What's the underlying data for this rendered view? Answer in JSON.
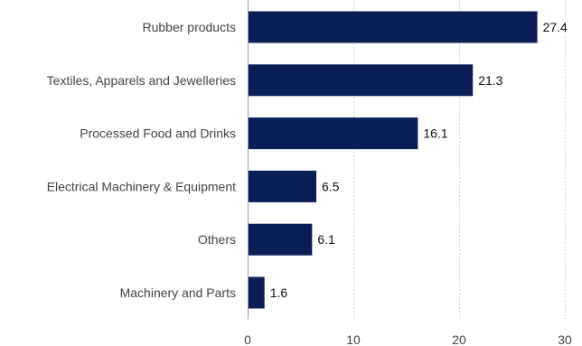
{
  "chart_data": {
    "type": "bar",
    "orientation": "horizontal",
    "categories": [
      "Rubber products",
      "Textiles, Apparels and Jewelleries",
      "Processed Food and Drinks",
      "Electrical Machinery & Equipment",
      "Others",
      "Machinery and Parts"
    ],
    "values": [
      27.4,
      21.3,
      16.1,
      6.5,
      6.1,
      1.6
    ],
    "data_labels": [
      "27.4",
      "21.3",
      "16.1",
      "6.5",
      "6.1",
      "1.6"
    ],
    "xlim": [
      0,
      30
    ],
    "x_ticks": [
      "0",
      "10",
      "20",
      "30"
    ],
    "x_tick_values": [
      0,
      10,
      20,
      30
    ],
    "grid": true,
    "legend": "none",
    "bar_color": "#0b1f57"
  }
}
